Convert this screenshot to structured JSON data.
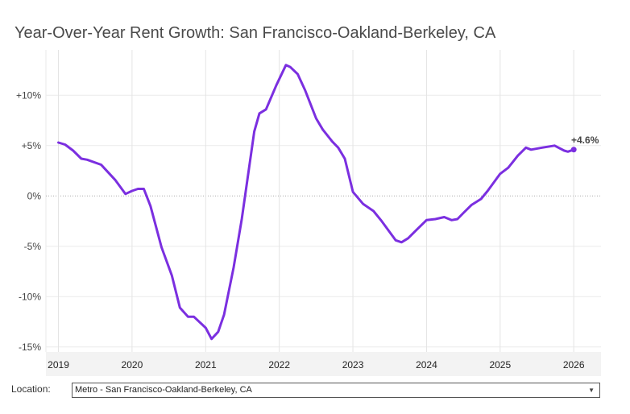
{
  "chart_data": {
    "type": "line",
    "title": "Year-Over-Year Rent Growth: San Francisco-Oakland-Berkeley, CA",
    "xlabel": "",
    "ylabel": "",
    "xlim": [
      2018.83,
      2026.37
    ],
    "ylim": [
      -15.5,
      14.5
    ],
    "grid": true,
    "x_ticks": [
      2019,
      2020,
      2021,
      2022,
      2023,
      2024,
      2025,
      2026
    ],
    "x_tick_labels": [
      "2019",
      "2020",
      "2021",
      "2022",
      "2023",
      "2024",
      "2025",
      "2026"
    ],
    "y_ticks": [
      10,
      5,
      0,
      -5,
      -10,
      -15
    ],
    "y_tick_labels": [
      "+10%",
      "+5%",
      "0%",
      "-5%",
      "-10%",
      "-15%"
    ],
    "series": [
      {
        "name": "Year-Over-Year Rent Growth",
        "color": "#7b2fe0",
        "x": [
          2019.0,
          2019.09,
          2019.2,
          2019.31,
          2019.39,
          2019.58,
          2019.77,
          2019.91,
          2020.0,
          2020.08,
          2020.16,
          2020.25,
          2020.4,
          2020.54,
          2020.65,
          2020.76,
          2020.84,
          2021.0,
          2021.08,
          2021.17,
          2021.25,
          2021.38,
          2021.49,
          2021.66,
          2021.73,
          2021.82,
          2021.96,
          2022.09,
          2022.15,
          2022.25,
          2022.35,
          2022.5,
          2022.59,
          2022.72,
          2022.8,
          2022.89,
          2023.0,
          2023.14,
          2023.28,
          2023.38,
          2023.58,
          2023.66,
          2023.75,
          2023.86,
          2024.0,
          2024.12,
          2024.24,
          2024.34,
          2024.42,
          2024.5,
          2024.61,
          2024.74,
          2024.83,
          2025.0,
          2025.11,
          2025.24,
          2025.35,
          2025.42,
          2025.57,
          2025.74,
          2025.87,
          2025.92,
          2026.0
        ],
        "values": [
          5.3,
          5.1,
          4.5,
          3.7,
          3.6,
          3.1,
          1.6,
          0.2,
          0.5,
          0.7,
          0.7,
          -1.0,
          -5.1,
          -7.9,
          -11.1,
          -12.0,
          -12.0,
          -13.1,
          -14.2,
          -13.5,
          -11.8,
          -7.1,
          -2.3,
          6.4,
          8.2,
          8.6,
          11.0,
          13.0,
          12.8,
          12.1,
          10.5,
          7.7,
          6.6,
          5.4,
          4.8,
          3.7,
          0.4,
          -0.8,
          -1.5,
          -2.4,
          -4.4,
          -4.6,
          -4.2,
          -3.4,
          -2.4,
          -2.3,
          -2.1,
          -2.4,
          -2.3,
          -1.7,
          -0.9,
          -0.3,
          0.5,
          2.2,
          2.8,
          4.0,
          4.8,
          4.6,
          4.8,
          5.0,
          4.5,
          4.4,
          4.6
        ]
      }
    ],
    "annotations": [
      {
        "text": "+4.6%",
        "x": 2026.0,
        "y": 4.6
      }
    ]
  },
  "controls": {
    "location_label": "Location:",
    "location_value": "Metro - San Francisco-Oakland-Berkeley, CA",
    "dropdown_icon": "triangle-down"
  }
}
